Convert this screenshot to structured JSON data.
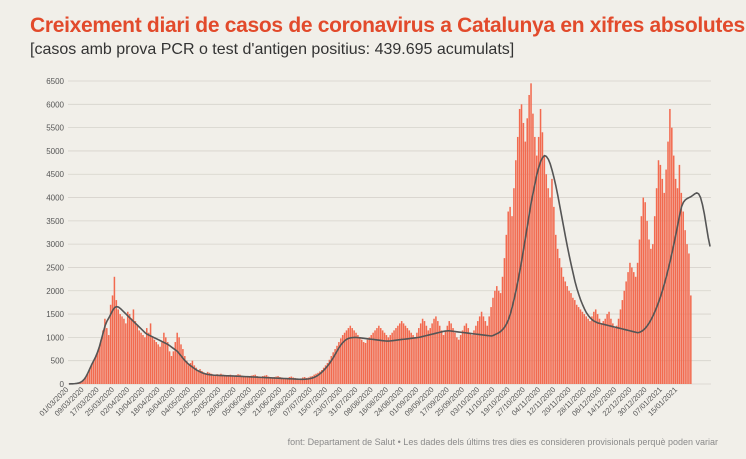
{
  "title": "Creixement diari de casos de coronavirus a Catalunya en xifres absolutes",
  "subtitle": "[casos amb prova PCR o test d'antigen positius: 439.695 acumulats]",
  "source": "font: Departament de Salut • Les dades dels últims tres dies es consideren provisionals perquè poden variar",
  "colors": {
    "bars": "#f26a4f",
    "line": "#555555",
    "title": "#e24a2b",
    "grid": "#d6d3cc",
    "background": "#f1efe9"
  },
  "chart_data": {
    "type": "bar",
    "grid": true,
    "ylim": [
      0,
      6500
    ],
    "yticks": [
      "0",
      "500",
      "1000",
      "1500",
      "2000",
      "2500",
      "3000",
      "3500",
      "4000",
      "4500",
      "5000",
      "5500",
      "6000",
      "6500"
    ],
    "x_start": "2020-03-01",
    "x_end": "2021-01-22",
    "xticks": [
      "01/03/2020",
      "09/03/2020",
      "17/03/2020",
      "25/03/2020",
      "02/04/2020",
      "10/04/2020",
      "18/04/2020",
      "26/04/2020",
      "04/05/2020",
      "12/05/2020",
      "20/05/2020",
      "28/05/2020",
      "05/06/2020",
      "13/06/2020",
      "21/06/2020",
      "29/06/2020",
      "07/07/2020",
      "15/07/2020",
      "23/07/2020",
      "31/07/2020",
      "08/08/2020",
      "16/08/2020",
      "24/08/2020",
      "01/09/2020",
      "09/09/2020",
      "17/09/2020",
      "25/09/2020",
      "03/10/2020",
      "11/10/2020",
      "19/10/2020",
      "27/10/2020",
      "04/11/2020",
      "12/11/2020",
      "20/11/2020",
      "28/11/2020",
      "06/12/2020",
      "14/12/2020",
      "22/12/2020",
      "30/12/2020",
      "07/01/2021",
      "15/01/2021"
    ],
    "series": [
      {
        "kind": "bar",
        "values": [
          2,
          3,
          5,
          8,
          12,
          20,
          35,
          60,
          100,
          160,
          240,
          330,
          420,
          500,
          580,
          680,
          800,
          950,
          1150,
          1400,
          1200,
          1050,
          1700,
          1900,
          2300,
          1800,
          1600,
          1500,
          1450,
          1400,
          1300,
          1550,
          1500,
          1400,
          1600,
          1350,
          1250,
          1150,
          1100,
          1050,
          1000,
          1200,
          1100,
          1300,
          1000,
          950,
          900,
          850,
          800,
          900,
          1100,
          1000,
          900,
          700,
          600,
          700,
          900,
          1100,
          1000,
          850,
          750,
          600,
          500,
          400,
          450,
          500,
          400,
          350,
          300,
          320,
          280,
          250,
          230,
          260,
          240,
          220,
          200,
          190,
          210,
          200,
          220,
          200,
          180,
          170,
          190,
          200,
          180,
          170,
          190,
          210,
          200,
          180,
          170,
          160,
          150,
          160,
          180,
          190,
          200,
          170,
          160,
          150,
          170,
          180,
          190,
          160,
          150,
          140,
          150,
          160,
          170,
          150,
          140,
          130,
          120,
          130,
          150,
          160,
          140,
          130,
          120,
          110,
          120,
          140,
          150,
          130,
          140,
          160,
          170,
          200,
          220,
          240,
          270,
          300,
          350,
          400,
          450,
          520,
          600,
          680,
          750,
          820,
          900,
          980,
          1050,
          1100,
          1150,
          1200,
          1250,
          1200,
          1150,
          1100,
          1050,
          1000,
          950,
          900,
          880,
          950,
          1000,
          1050,
          1100,
          1150,
          1200,
          1250,
          1200,
          1150,
          1100,
          1050,
          1000,
          1050,
          1100,
          1150,
          1200,
          1250,
          1300,
          1350,
          1300,
          1250,
          1200,
          1150,
          1100,
          1050,
          1000,
          1100,
          1200,
          1300,
          1400,
          1350,
          1250,
          1150,
          1200,
          1300,
          1400,
          1450,
          1350,
          1250,
          1150,
          1050,
          1150,
          1250,
          1350,
          1300,
          1200,
          1100,
          1000,
          950,
          1050,
          1150,
          1250,
          1300,
          1200,
          1100,
          1050,
          1150,
          1250,
          1350,
          1450,
          1550,
          1450,
          1350,
          1250,
          1450,
          1650,
          1850,
          2000,
          2100,
          2000,
          1950,
          2300,
          2700,
          3200,
          3700,
          3800,
          3600,
          4200,
          4800,
          5300,
          5900,
          6000,
          5600,
          5200,
          5700,
          6200,
          6450,
          5800,
          5300,
          4900,
          5300,
          5900,
          5400,
          4900,
          4500,
          4200,
          4000,
          4400,
          3800,
          3200,
          2900,
          2700,
          2500,
          2300,
          2200,
          2100,
          2000,
          1950,
          1850,
          1800,
          1700,
          1650,
          1600,
          1550,
          1500,
          1450,
          1400,
          1350,
          1450,
          1550,
          1600,
          1500,
          1400,
          1300,
          1350,
          1400,
          1500,
          1550,
          1400,
          1300,
          1200,
          1250,
          1400,
          1600,
          1800,
          2000,
          2200,
          2400,
          2600,
          2500,
          2400,
          2300,
          2600,
          3100,
          3600,
          4000,
          3900,
          3500,
          3100,
          2900,
          3000,
          3600,
          4200,
          4800,
          4700,
          4400,
          4100,
          4600,
          5200,
          5900,
          5500,
          4900,
          4400,
          4200,
          4700,
          4100,
          3700,
          3300,
          3000,
          2800,
          1900
        ]
      },
      {
        "kind": "line",
        "name": "",
        "values": [
          2,
          3,
          5,
          8,
          12,
          20,
          35,
          60,
          100,
          160,
          240,
          330,
          420,
          500,
          580,
          680,
          800,
          950,
          1100,
          1250,
          1350,
          1420,
          1500,
          1580,
          1640,
          1660,
          1650,
          1620,
          1580,
          1540,
          1500,
          1460,
          1420,
          1380,
          1340,
          1300,
          1260,
          1220,
          1180,
          1140,
          1100,
          1070,
          1050,
          1030,
          1010,
          990,
          970,
          950,
          930,
          910,
          890,
          870,
          850,
          820,
          790,
          760,
          730,
          700,
          650,
          600,
          550,
          500,
          460,
          420,
          390,
          360,
          330,
          300,
          280,
          260,
          240,
          225,
          215,
          205,
          200,
          195,
          190,
          188,
          186,
          184,
          182,
          180,
          178,
          176,
          175,
          174,
          172,
          170,
          168,
          166,
          164,
          162,
          160,
          158,
          156,
          154,
          152,
          150,
          148,
          146,
          144,
          142,
          140,
          138,
          136,
          134,
          132,
          130,
          128,
          126,
          124,
          122,
          120,
          118,
          116,
          114,
          112,
          110,
          108,
          106,
          104,
          102,
          100,
          100,
          102,
          105,
          110,
          118,
          130,
          145,
          165,
          190,
          220,
          255,
          295,
          340,
          390,
          445,
          505,
          570,
          640,
          710,
          780,
          840,
          890,
          930,
          960,
          980,
          990,
          995,
          998,
          1000,
          995,
          990,
          985,
          980,
          975,
          970,
          965,
          960,
          955,
          950,
          945,
          940,
          935,
          930,
          925,
          920,
          920,
          925,
          930,
          935,
          940,
          945,
          950,
          955,
          960,
          965,
          970,
          975,
          980,
          985,
          990,
          995,
          1000,
          1010,
          1020,
          1030,
          1040,
          1050,
          1060,
          1070,
          1080,
          1090,
          1100,
          1110,
          1120,
          1130,
          1135,
          1140,
          1140,
          1135,
          1130,
          1125,
          1120,
          1115,
          1110,
          1105,
          1100,
          1095,
          1090,
          1085,
          1080,
          1075,
          1070,
          1065,
          1060,
          1055,
          1050,
          1045,
          1040,
          1035,
          1030,
          1040,
          1060,
          1080,
          1100,
          1130,
          1170,
          1220,
          1290,
          1380,
          1500,
          1650,
          1820,
          2000,
          2200,
          2420,
          2650,
          2900,
          3150,
          3400,
          3650,
          3900,
          4100,
          4300,
          4500,
          4650,
          4780,
          4860,
          4900,
          4880,
          4820,
          4720,
          4580,
          4420,
          4240,
          4040,
          3820,
          3600,
          3380,
          3160,
          2950,
          2750,
          2560,
          2380,
          2200,
          2050,
          1920,
          1800,
          1700,
          1610,
          1530,
          1470,
          1420,
          1380,
          1350,
          1330,
          1310,
          1300,
          1290,
          1280,
          1270,
          1260,
          1250,
          1240,
          1230,
          1220,
          1210,
          1200,
          1190,
          1180,
          1170,
          1160,
          1150,
          1140,
          1130,
          1120,
          1110,
          1100,
          1110,
          1130,
          1160,
          1200,
          1250,
          1310,
          1380,
          1460,
          1550,
          1650,
          1760,
          1880,
          2010,
          2150,
          2300,
          2460,
          2630,
          2810,
          3000,
          3200,
          3410,
          3620,
          3800,
          3900,
          3950,
          3980,
          4000,
          4020,
          4050,
          4080,
          4100,
          4080,
          4000,
          3850,
          3650,
          3400,
          3150,
          2950
        ]
      }
    ]
  }
}
